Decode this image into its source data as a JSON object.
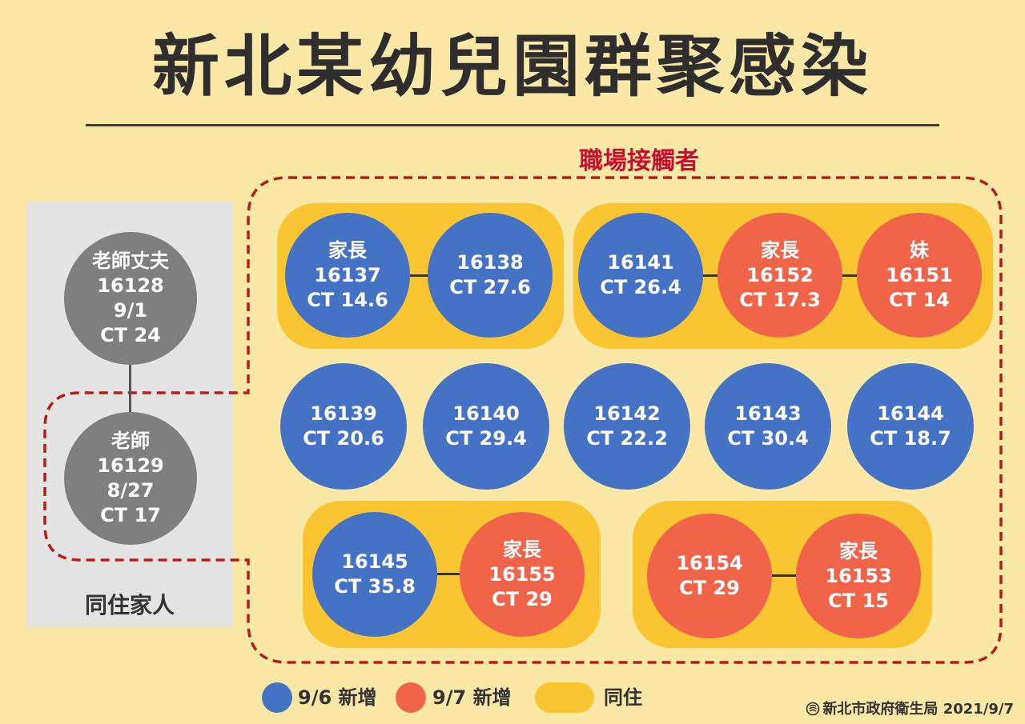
{
  "title": "新北某幼兒園群聚感染",
  "workplace_label": "職場接觸者",
  "family_label": "同住家人",
  "colors": {
    "background": "#fbe8a6",
    "new_9_6": "#4472c4",
    "new_9_7": "#f0654a",
    "cohabit": "#f9c530",
    "family": "#7f7f7f",
    "dash": "#b71c1c"
  },
  "family": [
    {
      "lines": [
        "老師丈夫",
        "16128",
        "9/1",
        "CT 24"
      ]
    },
    {
      "lines": [
        "老師",
        "16129",
        "8/27",
        "CT 17"
      ]
    }
  ],
  "groups": {
    "g1": [
      {
        "lines": [
          "家長",
          "16137",
          "CT 14.6"
        ]
      },
      {
        "lines": [
          "16138",
          "CT 27.6"
        ]
      }
    ],
    "g2": [
      {
        "lines": [
          "16141",
          "CT 26.4"
        ]
      },
      {
        "lines": [
          "家長",
          "16152",
          "CT 17.3"
        ]
      },
      {
        "lines": [
          "妹",
          "16151",
          "CT 14"
        ]
      }
    ],
    "row2": [
      {
        "lines": [
          "16139",
          "CT 20.6"
        ]
      },
      {
        "lines": [
          "16140",
          "CT 29.4"
        ]
      },
      {
        "lines": [
          "16142",
          "CT 22.2"
        ]
      },
      {
        "lines": [
          "16143",
          "CT 30.4"
        ]
      },
      {
        "lines": [
          "16144",
          "CT 18.7"
        ]
      }
    ],
    "g3": [
      {
        "lines": [
          "16145",
          "CT 35.8"
        ]
      },
      {
        "lines": [
          "家長",
          "16155",
          "CT 29"
        ]
      }
    ],
    "g4": [
      {
        "lines": [
          "16154",
          "CT 29"
        ]
      },
      {
        "lines": [
          "家長",
          "16153",
          "CT 15"
        ]
      }
    ]
  },
  "legend": {
    "new_9_6": "9/6 新增",
    "new_9_7": "9/7 新增",
    "cohabit": "同住"
  },
  "source": "新北市政府衛生局 2021/9/7",
  "source_icon": "new-taipei-logo-icon"
}
